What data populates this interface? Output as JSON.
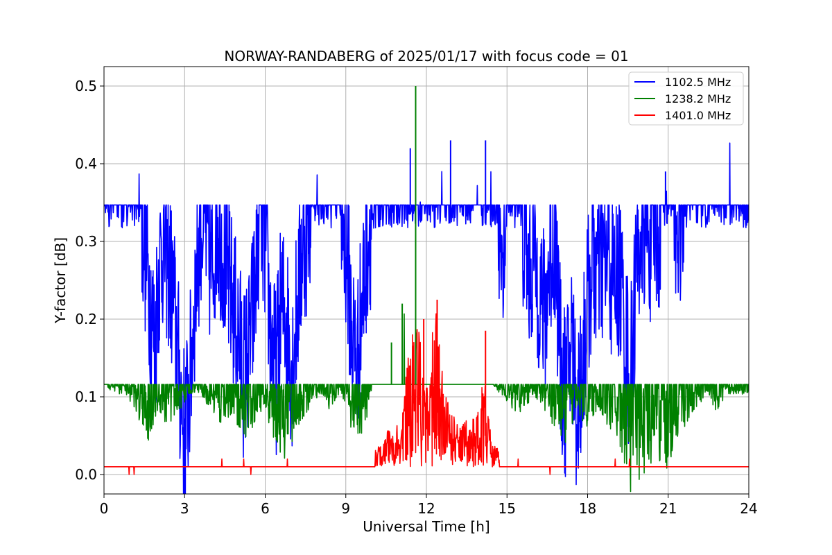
{
  "chart_data": {
    "type": "line",
    "title": "NORWAY-RANDABERG of 2025/01/17 with focus code = 01",
    "xlabel": "Universal Time [h]",
    "ylabel": "Y-factor [dB]",
    "xlim": [
      0,
      24
    ],
    "ylim": [
      -0.025,
      0.525
    ],
    "xticks": [
      0,
      3,
      6,
      9,
      12,
      15,
      18,
      21,
      24
    ],
    "yticks": [
      0.0,
      0.1,
      0.2,
      0.3,
      0.4,
      0.5
    ],
    "ytick_labels": [
      "0.0",
      "0.1",
      "0.2",
      "0.3",
      "0.4",
      "0.5"
    ],
    "grid": true,
    "legend_position": "top-right",
    "series": [
      {
        "name": "1102.5 MHz",
        "color": "#0000ff",
        "x": [
          0,
          0.2,
          0.4,
          0.6,
          0.8,
          1.0,
          1.2,
          1.4,
          1.6,
          1.8,
          1.9,
          2.0,
          2.2,
          2.4,
          2.6,
          2.8,
          3.0,
          3.2,
          3.4,
          3.6,
          3.8,
          4.0,
          4.2,
          4.4,
          4.6,
          4.8,
          5.0,
          5.2,
          5.4,
          5.6,
          5.8,
          6.0,
          6.2,
          6.4,
          6.6,
          6.8,
          7.0,
          7.2,
          7.4,
          7.6,
          7.8,
          8.0,
          8.4,
          8.8,
          9.0,
          9.2,
          9.4,
          9.6,
          9.8,
          10.0,
          10.4,
          10.8,
          11.2,
          11.4,
          11.6,
          12.0,
          12.4,
          12.8,
          13.2,
          13.6,
          14.0,
          14.2,
          14.6,
          14.8,
          15.0,
          15.4,
          15.6,
          15.8,
          16.0,
          16.2,
          16.4,
          16.6,
          16.8,
          17.0,
          17.2,
          17.4,
          17.6,
          17.8,
          18.0,
          18.2,
          18.4,
          18.6,
          18.8,
          19.0,
          19.2,
          19.4,
          19.6,
          19.8,
          20.0,
          20.4,
          20.8,
          21.0,
          21.4,
          21.8,
          22.2,
          22.6,
          23.0,
          23.4,
          23.8,
          24.0
        ],
        "y": [
          0.34,
          0.33,
          0.34,
          0.33,
          0.34,
          0.34,
          0.35,
          0.33,
          0.27,
          0.2,
          0.16,
          0.25,
          0.3,
          0.27,
          0.22,
          0.13,
          0.05,
          0.12,
          0.24,
          0.33,
          0.31,
          0.26,
          0.33,
          0.3,
          0.25,
          0.22,
          0.18,
          0.13,
          0.16,
          0.23,
          0.33,
          0.3,
          0.18,
          0.13,
          0.22,
          0.2,
          0.14,
          0.22,
          0.3,
          0.32,
          0.34,
          0.33,
          0.34,
          0.33,
          0.3,
          0.2,
          0.14,
          0.22,
          0.3,
          0.34,
          0.34,
          0.35,
          0.35,
          0.35,
          0.35,
          0.35,
          0.35,
          0.35,
          0.35,
          0.34,
          0.35,
          0.35,
          0.34,
          0.3,
          0.34,
          0.34,
          0.32,
          0.26,
          0.28,
          0.24,
          0.2,
          0.28,
          0.3,
          0.14,
          0.1,
          0.18,
          0.08,
          0.14,
          0.22,
          0.28,
          0.26,
          0.28,
          0.27,
          0.24,
          0.26,
          0.18,
          0.12,
          0.26,
          0.33,
          0.3,
          0.33,
          0.34,
          0.32,
          0.34,
          0.33,
          0.34,
          0.33,
          0.34,
          0.34,
          0.34
        ]
      },
      {
        "name": "1238.2 MHz",
        "color": "#008000",
        "x": [
          0,
          0.4,
          0.8,
          1.2,
          1.6,
          2.0,
          2.4,
          2.8,
          3.2,
          3.6,
          4.0,
          4.4,
          4.8,
          5.2,
          5.6,
          6.0,
          6.4,
          6.8,
          7.2,
          7.6,
          8.0,
          8.4,
          8.8,
          9.2,
          9.6,
          10.0,
          10.4,
          10.8,
          11.2,
          11.4,
          11.6,
          11.8,
          12.0,
          12.4,
          12.8,
          13.2,
          13.6,
          14.0,
          14.4,
          14.8,
          15.2,
          15.6,
          16.0,
          16.4,
          16.8,
          17.2,
          17.6,
          18.0,
          18.4,
          18.8,
          19.2,
          19.6,
          20.0,
          20.4,
          20.8,
          21.2,
          21.6,
          22.0,
          22.4,
          22.8,
          23.2,
          23.6,
          24.0
        ],
        "y": [
          0.115,
          0.11,
          0.11,
          0.1,
          0.08,
          0.1,
          0.09,
          0.1,
          0.11,
          0.11,
          0.1,
          0.09,
          0.1,
          0.08,
          0.09,
          0.1,
          0.08,
          0.07,
          0.09,
          0.1,
          0.11,
          0.1,
          0.11,
          0.09,
          0.08,
          0.115,
          0.115,
          0.115,
          0.115,
          0.115,
          0.115,
          0.115,
          0.115,
          0.115,
          0.115,
          0.115,
          0.115,
          0.115,
          0.115,
          0.11,
          0.1,
          0.1,
          0.11,
          0.1,
          0.09,
          0.08,
          0.1,
          0.09,
          0.1,
          0.09,
          0.08,
          0.05,
          0.06,
          0.07,
          0.05,
          0.08,
          0.09,
          0.1,
          0.11,
          0.1,
          0.11,
          0.11,
          0.11
        ]
      },
      {
        "name": "1401.0 MHz",
        "color": "#ff0000",
        "x": [
          0,
          1,
          2,
          3,
          4,
          5,
          6,
          7,
          8,
          9,
          9.5,
          10.0,
          10.4,
          10.6,
          10.8,
          11.0,
          11.2,
          11.4,
          11.6,
          11.8,
          12.0,
          12.2,
          12.4,
          12.6,
          12.8,
          13.0,
          13.2,
          13.4,
          13.6,
          13.8,
          14.0,
          14.2,
          14.4,
          14.8,
          15.2,
          16,
          17,
          18,
          19,
          20,
          21,
          22,
          23,
          24
        ],
        "y": [
          0.01,
          0.01,
          0.01,
          0.01,
          0.01,
          0.01,
          0.01,
          0.01,
          0.01,
          0.01,
          0.01,
          0.01,
          0.02,
          0.03,
          0.04,
          0.03,
          0.06,
          0.1,
          0.13,
          0.09,
          0.06,
          0.1,
          0.12,
          0.07,
          0.05,
          0.04,
          0.03,
          0.04,
          0.03,
          0.04,
          0.05,
          0.09,
          0.02,
          0.01,
          0.01,
          0.01,
          0.01,
          0.01,
          0.01,
          0.01,
          0.01,
          0.01,
          0.01,
          0.01
        ]
      }
    ]
  }
}
